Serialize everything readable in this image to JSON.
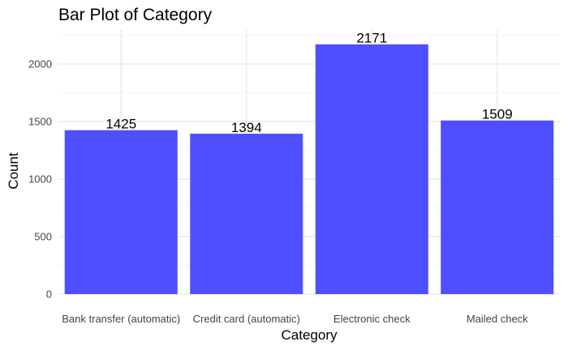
{
  "chart_data": {
    "type": "bar",
    "title": "Bar Plot of Category",
    "xlabel": "Category",
    "ylabel": "Count",
    "categories": [
      "Bank transfer (automatic)",
      "Credit card (automatic)",
      "Electronic check",
      "Mailed check"
    ],
    "values": [
      1425,
      1394,
      2171,
      1509
    ],
    "data_labels": [
      "1425",
      "1394",
      "2171",
      "1509"
    ],
    "y_ticks": [
      0,
      500,
      1000,
      1500,
      2000
    ],
    "y_tick_labels": [
      "0",
      "500",
      "1000",
      "1500",
      "2000"
    ],
    "ylim": [
      0,
      2300
    ],
    "grid": true,
    "legend": "none",
    "bar_color": "#4b4bff"
  }
}
